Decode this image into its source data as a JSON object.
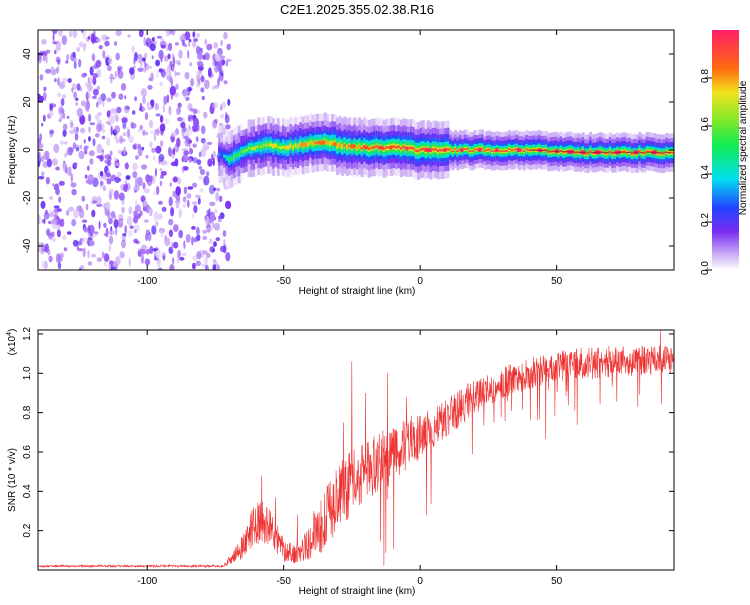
{
  "page": {
    "title": "C2E1.2025.355.02.38.R16"
  },
  "chart_data": [
    {
      "type": "heatmap",
      "name": "spectrogram",
      "xlabel": "Height of straight line (km)",
      "ylabel": "Frequency (Hz)",
      "xlim": [
        -140,
        93
      ],
      "ylim": [
        -50,
        50
      ],
      "xticks": [
        -100,
        -50,
        0,
        50
      ],
      "yticks": [
        -40,
        -20,
        0,
        20,
        40
      ],
      "noise_region_x": [
        -140,
        -70
      ],
      "ridge": [
        {
          "x": -73,
          "y": -2,
          "amp": 0.3
        },
        {
          "x": -70,
          "y": -4,
          "amp": 0.55
        },
        {
          "x": -65,
          "y": 0,
          "amp": 0.6
        },
        {
          "x": -60,
          "y": 1,
          "amp": 0.65
        },
        {
          "x": -55,
          "y": 2,
          "amp": 0.7
        },
        {
          "x": -50,
          "y": 1,
          "amp": 0.7
        },
        {
          "x": -45,
          "y": 2,
          "amp": 0.75
        },
        {
          "x": -40,
          "y": 3,
          "amp": 0.8
        },
        {
          "x": -35,
          "y": 3,
          "amp": 0.8
        },
        {
          "x": -30,
          "y": 2,
          "amp": 0.8
        },
        {
          "x": -20,
          "y": 1,
          "amp": 0.85
        },
        {
          "x": -10,
          "y": 1,
          "amp": 0.9
        },
        {
          "x": 0,
          "y": 0,
          "amp": 0.9
        },
        {
          "x": 20,
          "y": 0,
          "amp": 0.92
        },
        {
          "x": 40,
          "y": 0,
          "amp": 0.95
        },
        {
          "x": 60,
          "y": -1,
          "amp": 0.97
        },
        {
          "x": 80,
          "y": -1,
          "amp": 1.0
        },
        {
          "x": 93,
          "y": -1,
          "amp": 1.0
        }
      ],
      "colorbar": {
        "label": "Normalized spectral amplitude",
        "range": [
          0,
          1
        ],
        "ticks": [
          0.0,
          0.2,
          0.4,
          0.6,
          0.8
        ],
        "tick_labels": [
          "0.0",
          "0.2",
          "0.4",
          "0.6",
          "0.8"
        ]
      }
    },
    {
      "type": "line",
      "name": "snr",
      "xlabel": "Height of straight line (km)",
      "ylabel": "SNR (10 * v/v)",
      "multiplier": "(x10",
      "multiplier_exp": "4",
      "multiplier_close": ")",
      "xlim": [
        -140,
        93
      ],
      "ylim": [
        0,
        1.22
      ],
      "xticks": [
        -100,
        -50,
        0,
        50
      ],
      "yticks": [
        0.2,
        0.4,
        0.6,
        0.8,
        1.0,
        1.2
      ],
      "ytick_labels": [
        "0.2",
        "0.4",
        "0.6",
        "0.8",
        "1.0",
        "1.2"
      ],
      "color": "#ee3333",
      "envelope": [
        {
          "x": -140,
          "y": 0.02,
          "noise": 0.005
        },
        {
          "x": -72,
          "y": 0.02,
          "noise": 0.006
        },
        {
          "x": -66,
          "y": 0.1,
          "noise": 0.05
        },
        {
          "x": -60,
          "y": 0.25,
          "noise": 0.12
        },
        {
          "x": -55,
          "y": 0.22,
          "noise": 0.1
        },
        {
          "x": -50,
          "y": 0.1,
          "noise": 0.06
        },
        {
          "x": -45,
          "y": 0.08,
          "noise": 0.05
        },
        {
          "x": -40,
          "y": 0.15,
          "noise": 0.1
        },
        {
          "x": -35,
          "y": 0.25,
          "noise": 0.15
        },
        {
          "x": -30,
          "y": 0.38,
          "noise": 0.18
        },
        {
          "x": -20,
          "y": 0.5,
          "noise": 0.15
        },
        {
          "x": -10,
          "y": 0.6,
          "noise": 0.15
        },
        {
          "x": 0,
          "y": 0.68,
          "noise": 0.12
        },
        {
          "x": 10,
          "y": 0.78,
          "noise": 0.1
        },
        {
          "x": 20,
          "y": 0.88,
          "noise": 0.09
        },
        {
          "x": 30,
          "y": 0.95,
          "noise": 0.08
        },
        {
          "x": 40,
          "y": 1.0,
          "noise": 0.08
        },
        {
          "x": 55,
          "y": 1.05,
          "noise": 0.08
        },
        {
          "x": 70,
          "y": 1.06,
          "noise": 0.08
        },
        {
          "x": 93,
          "y": 1.07,
          "noise": 0.07
        }
      ],
      "spikes": [
        {
          "x": -58,
          "y": 0.48
        },
        {
          "x": -53,
          "y": 0.37
        },
        {
          "x": -45,
          "y": 0.28
        },
        {
          "x": -39,
          "y": 0.3
        },
        {
          "x": -33,
          "y": 0.45
        },
        {
          "x": -28,
          "y": 0.75
        },
        {
          "x": -25,
          "y": 1.06
        },
        {
          "x": -20,
          "y": 0.9
        },
        {
          "x": -12,
          "y": 1.0
        },
        {
          "x": -5,
          "y": 0.88
        },
        {
          "x": 88,
          "y": 1.22
        }
      ]
    }
  ]
}
